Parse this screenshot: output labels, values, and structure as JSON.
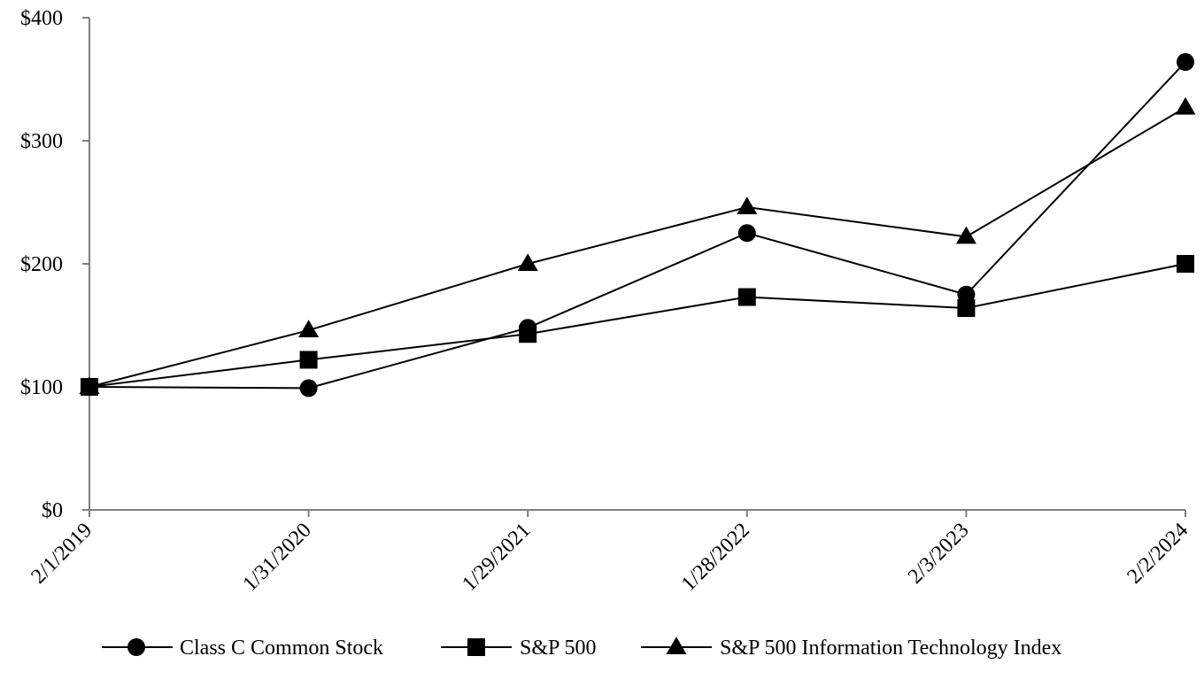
{
  "chart_data": {
    "type": "line",
    "categories": [
      "2/1/2019",
      "1/31/2020",
      "1/29/2021",
      "1/28/2022",
      "2/3/2023",
      "2/2/2024"
    ],
    "y_ticks": [
      "$0",
      "$100",
      "$200",
      "$300",
      "$400"
    ],
    "y_tick_values": [
      0,
      100,
      200,
      300,
      400
    ],
    "ylim": [
      0,
      400
    ],
    "grid": false,
    "legend_position": "bottom",
    "title": "",
    "xlabel": "",
    "ylabel": "",
    "series": [
      {
        "name": "Class C Common Stock",
        "marker": "circle",
        "values": [
          100,
          99,
          148,
          225,
          175,
          364
        ]
      },
      {
        "name": "S&P 500",
        "marker": "square",
        "values": [
          100,
          122,
          143,
          173,
          164,
          200
        ]
      },
      {
        "name": "S&P 500 Information Technology Index",
        "marker": "triangle",
        "values": [
          100,
          146,
          200,
          246,
          222,
          327
        ]
      }
    ],
    "colors": {
      "line": "#000000",
      "axis": "#7f7f7f"
    }
  }
}
